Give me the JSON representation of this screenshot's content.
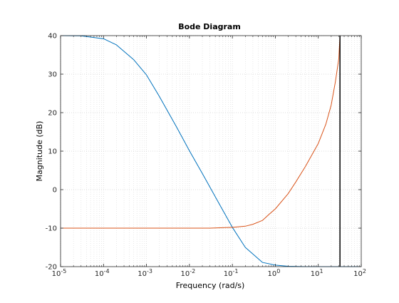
{
  "chart_data": {
    "type": "line",
    "title": "Bode Diagram",
    "xlabel": "Frequency  (rad/s)",
    "ylabel": "Magnitude (dB)",
    "x_scale": "log",
    "xlim": [
      1e-05,
      100
    ],
    "ylim": [
      -20,
      40
    ],
    "x_ticks": [
      1e-05,
      0.0001,
      0.001,
      0.01,
      0.1,
      1,
      10,
      100
    ],
    "x_tick_labels": [
      {
        "base": "10",
        "exp": "-5"
      },
      {
        "base": "10",
        "exp": "-4"
      },
      {
        "base": "10",
        "exp": "-3"
      },
      {
        "base": "10",
        "exp": "-2"
      },
      {
        "base": "10",
        "exp": "-1"
      },
      {
        "base": "10",
        "exp": "0"
      },
      {
        "base": "10",
        "exp": "1"
      },
      {
        "base": "10",
        "exp": "2"
      }
    ],
    "y_ticks": [
      -20,
      -10,
      0,
      10,
      20,
      30,
      40
    ],
    "y_tick_labels": [
      "-20",
      "-10",
      "0",
      "10",
      "20",
      "30",
      "40"
    ],
    "grid": true,
    "minor_grid": true,
    "series": [
      {
        "color": "#0072bd",
        "x": [
          1e-05,
          3e-05,
          0.0001,
          0.0002,
          0.0005,
          0.001,
          0.002,
          0.005,
          0.01,
          0.02,
          0.05,
          0.1,
          0.2,
          0.5,
          1,
          2,
          5,
          10,
          100
        ],
        "y": [
          40,
          39.95,
          39.2,
          37.6,
          33.8,
          29.8,
          24.2,
          16.3,
          10.1,
          4.2,
          -3.8,
          -9.8,
          -15,
          -18.9,
          -19.6,
          -19.9,
          -20,
          -20,
          -20
        ]
      },
      {
        "color": "#d95319",
        "x": [
          1e-05,
          0.001,
          0.01,
          0.03,
          0.1,
          0.2,
          0.3,
          0.5,
          0.7,
          1,
          2,
          3,
          5,
          10,
          15,
          20,
          25,
          30,
          32
        ],
        "y": [
          -10,
          -10,
          -10,
          -10,
          -9.8,
          -9.5,
          -9,
          -8,
          -6.5,
          -5,
          -1,
          2,
          6,
          12,
          17,
          22,
          28,
          34,
          40
        ]
      }
    ],
    "vertical_line": {
      "x": 32,
      "color": "#000000"
    }
  }
}
